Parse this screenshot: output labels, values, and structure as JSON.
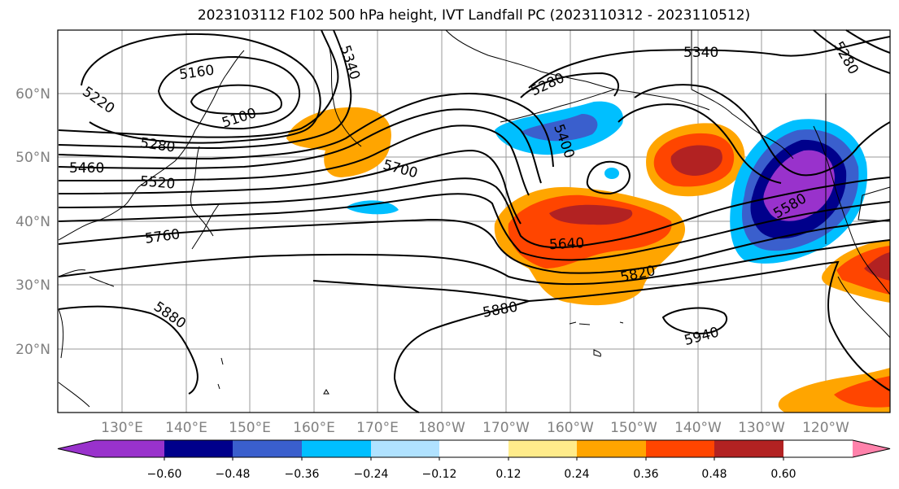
{
  "title": "2023103112 F102 500 hPa height, IVT Landfall PC (2023110312 - 2023110512)",
  "map": {
    "lat_labels": [
      "60°N",
      "50°N",
      "40°N",
      "30°N",
      "20°N"
    ],
    "lon_labels": [
      "130°E",
      "140°E",
      "150°E",
      "160°E",
      "170°E",
      "180°W",
      "170°W",
      "160°W",
      "150°W",
      "140°W",
      "130°W",
      "120°W"
    ],
    "contour_labels": [
      {
        "text": "5160"
      },
      {
        "text": "5100"
      },
      {
        "text": "5220"
      },
      {
        "text": "5280"
      },
      {
        "text": "5460"
      },
      {
        "text": "5520"
      },
      {
        "text": "5760"
      },
      {
        "text": "5880"
      },
      {
        "text": "5340"
      },
      {
        "text": "5700"
      },
      {
        "text": "5280"
      },
      {
        "text": "5400"
      },
      {
        "text": "5340"
      },
      {
        "text": "5640"
      },
      {
        "text": "5820"
      },
      {
        "text": "5880"
      },
      {
        "text": "5580"
      },
      {
        "text": "5940"
      },
      {
        "text": "5280"
      }
    ]
  },
  "colorbar": {
    "colors": [
      "#9932cc",
      "#00008b",
      "#3a5fcd",
      "#00bfff",
      "#b0e2ff",
      "#ffffff",
      "#ffec8b",
      "#ffa500",
      "#ff4500",
      "#b22222",
      "#ff82ab"
    ],
    "tick_labels": [
      "−0.60",
      "−0.48",
      "−0.36",
      "−0.24",
      "−0.12",
      "0.12",
      "0.24",
      "0.36",
      "0.48",
      "0.60"
    ]
  }
}
